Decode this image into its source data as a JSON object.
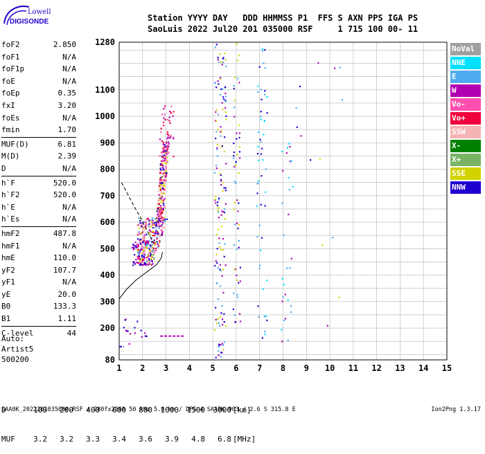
{
  "logo": {
    "line1": "Lowell",
    "line2": "DIGISONDE"
  },
  "header": {
    "line1": "Station YYYY DAY   DDD HHMMSS P1  FFS S AXN PPS IGA PS",
    "line2": "SaoLuis 2022 Jul20 201 035000 RSF     1 715 100 00- 11"
  },
  "params": [
    {
      "k": "foF2",
      "v": "2.850"
    },
    {
      "k": "foF1",
      "v": "N/A"
    },
    {
      "k": "foF1p",
      "v": "N/A"
    },
    {
      "k": "foE",
      "v": "N/A"
    },
    {
      "k": "foEp",
      "v": "0.35"
    },
    {
      "k": "fxI",
      "v": "3.20"
    },
    {
      "k": "foEs",
      "v": "N/A"
    },
    {
      "k": "fmin",
      "v": "1.70"
    },
    {
      "k": "MUF(D)",
      "v": "6.81"
    },
    {
      "k": "M(D)",
      "v": "2.39"
    },
    {
      "k": "D",
      "v": "N/A"
    },
    {
      "k": "h`F",
      "v": "520.0"
    },
    {
      "k": "h`F2",
      "v": "520.0"
    },
    {
      "k": "h`E",
      "v": "N/A"
    },
    {
      "k": "h`Es",
      "v": "N/A"
    },
    {
      "k": "hmF2",
      "v": "487.8"
    },
    {
      "k": "hmF1",
      "v": "N/A"
    },
    {
      "k": "hmE",
      "v": "110.0"
    },
    {
      "k": "yF2",
      "v": "107.7"
    },
    {
      "k": "yF1",
      "v": "N/A"
    },
    {
      "k": "yE",
      "v": "20.0"
    },
    {
      "k": "B0",
      "v": "133.3"
    },
    {
      "k": "B1",
      "v": "1.11"
    },
    {
      "k": "C-level",
      "v": "44"
    }
  ],
  "auto": {
    "l1": "Auto:",
    "l2": "Artist5",
    "l3": "500200"
  },
  "legend": [
    {
      "label": "NoVal",
      "color": "#a0a0a0"
    },
    {
      "label": "NNE",
      "color": "#00e0ff"
    },
    {
      "label": "E",
      "color": "#50aaf0"
    },
    {
      "label": "W",
      "color": "#b000b0"
    },
    {
      "label": "Vo-",
      "color": "#ff50b0"
    },
    {
      "label": "Vo+",
      "color": "#f0003c"
    },
    {
      "label": "SSW",
      "color": "#f5b4b4"
    },
    {
      "label": "X-",
      "color": "#008000"
    },
    {
      "label": "X+",
      "color": "#78b464"
    },
    {
      "label": "SSE",
      "color": "#d2d200"
    },
    {
      "label": "NNW",
      "color": "#2000d0"
    }
  ],
  "footer": {
    "d_row": {
      "label": "D",
      "values": [
        "100",
        "200",
        "400",
        "600",
        "800",
        "1000",
        "1500",
        "3000"
      ],
      "unit": "[km]"
    },
    "muf_row": {
      "label": "MUF",
      "values": [
        "3.2",
        "3.2",
        "3.3",
        "3.4",
        "3.6",
        "3.9",
        "4.8",
        "6.8"
      ],
      "unit": "[MHz]"
    },
    "file_line": "SAA0K_2022201035000.RSF / 280fx256h 50 kHz 5.0 km / DPS-4 SAA0K 903 / 2.6 S 315.8 E",
    "version": "Ion2Png 1.3.17"
  },
  "chart_data": {
    "type": "scatter",
    "xlim": [
      1,
      15
    ],
    "ylim": [
      80,
      1280
    ],
    "x_ticks": [
      "1",
      "2",
      "3",
      "4",
      "5",
      "6",
      "7",
      "8",
      "9",
      "10",
      "11",
      "12",
      "13",
      "14",
      "15"
    ],
    "y_ticks": [
      "80",
      "200",
      "300",
      "400",
      "500",
      "600",
      "700",
      "800",
      "900",
      "1000",
      "1100",
      "1280"
    ],
    "grid": true,
    "profile_line": [
      [
        1.0,
        310
      ],
      [
        1.3,
        345
      ],
      [
        1.7,
        380
      ],
      [
        2.0,
        400
      ],
      [
        2.3,
        420
      ],
      [
        2.6,
        440
      ],
      [
        2.8,
        465
      ],
      [
        2.85,
        488
      ]
    ],
    "dashed_trace": [
      [
        1.1,
        750
      ],
      [
        1.4,
        700
      ],
      [
        1.7,
        650
      ],
      [
        1.9,
        620
      ],
      [
        2.1,
        585
      ],
      [
        2.3,
        550
      ],
      [
        2.5,
        520
      ]
    ],
    "x_trace_segments": [
      {
        "x": [
          2.0,
          3.1
        ],
        "y": [
          490,
          610
        ]
      }
    ],
    "clusters": [
      {
        "name": "F2-trace",
        "x": [
          1.75,
          3.05
        ],
        "y": [
          440,
          620
        ],
        "n": 320,
        "colors": [
          "#ff50b0",
          "#f0003c",
          "#2000d0",
          "#b000b0",
          "#d2d200",
          "#50aaf0",
          "#f5b4b4"
        ]
      },
      {
        "name": "F2-upper",
        "x": [
          2.55,
          3.05
        ],
        "y": [
          600,
          900
        ],
        "n": 260,
        "colors": [
          "#b000b0",
          "#ff50b0",
          "#d2d200",
          "#f0003c",
          "#f5b4b4",
          "#2000d0"
        ]
      },
      {
        "name": "F2-top",
        "x": [
          2.7,
          3.3
        ],
        "y": [
          850,
          1060
        ],
        "n": 45,
        "colors": [
          "#b000b0",
          "#ff50b0",
          "#f0003c"
        ]
      },
      {
        "name": "low-left",
        "x": [
          1.5,
          2.1
        ],
        "y": [
          440,
          530
        ],
        "n": 40,
        "colors": [
          "#2000d0",
          "#b000b0"
        ]
      },
      {
        "name": "col5",
        "x": [
          5.05,
          5.55
        ],
        "y": [
          90,
          1280
        ],
        "n": 150,
        "colors": [
          "#2000d0",
          "#b000b0",
          "#50aaf0",
          "#d2d200"
        ]
      },
      {
        "name": "col6",
        "x": [
          5.85,
          6.15
        ],
        "y": [
          120,
          1280
        ],
        "n": 60,
        "colors": [
          "#2000d0",
          "#b000b0",
          "#50aaf0",
          "#d2d200"
        ]
      },
      {
        "name": "col7",
        "x": [
          6.85,
          7.3
        ],
        "y": [
          150,
          1260
        ],
        "n": 55,
        "colors": [
          "#50aaf0",
          "#00e0ff",
          "#2000d0"
        ]
      },
      {
        "name": "col8",
        "x": [
          7.9,
          8.4
        ],
        "y": [
          150,
          900
        ],
        "n": 30,
        "colors": [
          "#50aaf0",
          "#00e0ff",
          "#b000b0"
        ]
      },
      {
        "name": "sparse",
        "x": [
          8.5,
          10.6
        ],
        "y": [
          150,
          1260
        ],
        "n": 14,
        "colors": [
          "#b000b0",
          "#50aaf0",
          "#d2d200",
          "#2000d0"
        ]
      },
      {
        "name": "bottom-left",
        "x": [
          1.0,
          2.2
        ],
        "y": [
          140,
          240
        ],
        "n": 16,
        "colors": [
          "#2000d0",
          "#b000b0"
        ]
      }
    ],
    "segments": [
      {
        "x1": 2.75,
        "x2": 3.8,
        "y": 170,
        "color": "#b000b0"
      },
      {
        "x1": 1.0,
        "x2": 1.2,
        "y": 130,
        "color": "#2000d0"
      }
    ]
  }
}
